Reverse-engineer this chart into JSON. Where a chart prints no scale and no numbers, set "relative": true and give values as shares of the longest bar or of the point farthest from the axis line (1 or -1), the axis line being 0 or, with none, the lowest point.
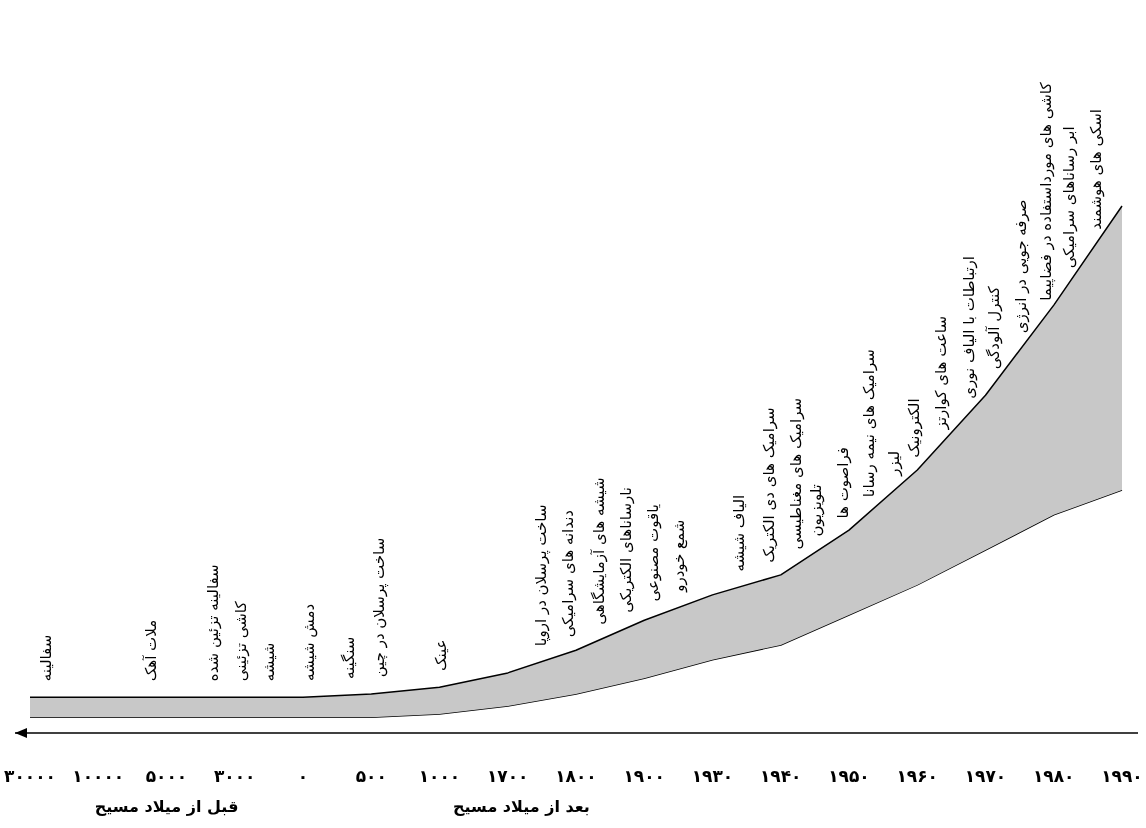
{
  "chart_data": {
    "type": "area",
    "relative": true,
    "stacked": true,
    "categories": [
      "۳۰۰۰۰",
      "۱۰۰۰۰",
      "۵۰۰۰",
      "۳۰۰۰",
      "۰",
      "۵۰۰",
      "۱۰۰۰",
      "۱۷۰۰",
      "۱۸۰۰",
      "۱۹۰۰",
      "۱۹۳۰",
      "۱۹۴۰",
      "۱۹۵۰",
      "۱۹۶۰",
      "۱۹۷۰",
      "۱۹۸۰",
      "۱۹۹۰"
    ],
    "series": [
      {
        "color": "#ffffff",
        "values": [
          0.03,
          0.03,
          0.03,
          0.03,
          0.03,
          0.03,
          0.036,
          0.051,
          0.074,
          0.104,
          0.139,
          0.167,
          0.224,
          0.281,
          0.347,
          0.414,
          0.461
        ]
      },
      {
        "color": "#c8c8c8",
        "values": [
          0.038,
          0.038,
          0.038,
          0.038,
          0.038,
          0.044,
          0.051,
          0.063,
          0.083,
          0.11,
          0.123,
          0.133,
          0.161,
          0.218,
          0.294,
          0.398,
          0.539
        ]
      }
    ],
    "annotations": [
      "سفالینه",
      "ملات آهک",
      "سفالینه تزئین شده",
      "کاشی تزئینی",
      "شیشه",
      "دمش شیشه",
      "سنگینه",
      "ساخت پرسلان در چین",
      "عینک",
      "ساخت پرسلان در اروپا",
      "دندانه های سرامیکی",
      "شیشه های آزمایشگاهی",
      "نارساناهای الکتریکی",
      "یاقوت مصنوعی",
      "شمع خودرو",
      "الیاف شیشه",
      "سرامیک های دی الکتریک",
      "سرامیک های مغناطیسی",
      "تلویزیون",
      "فراصوت ها",
      "سرامیک های نیمه رسانا",
      "لیزر",
      "الکترونیک",
      "ساعت های کوارتز",
      "ارتباطات با الیاف نوری",
      "کنترل آلودگی",
      "صرفه جویی در انرژی",
      "کاشی های مورداستفاده در فضاپیما",
      "ابر رساناهای سرامیکی",
      "اسکی های هوشمند",
      "قبل از میلاد مسیح",
      "بعد از میلاد مسیح"
    ]
  }
}
